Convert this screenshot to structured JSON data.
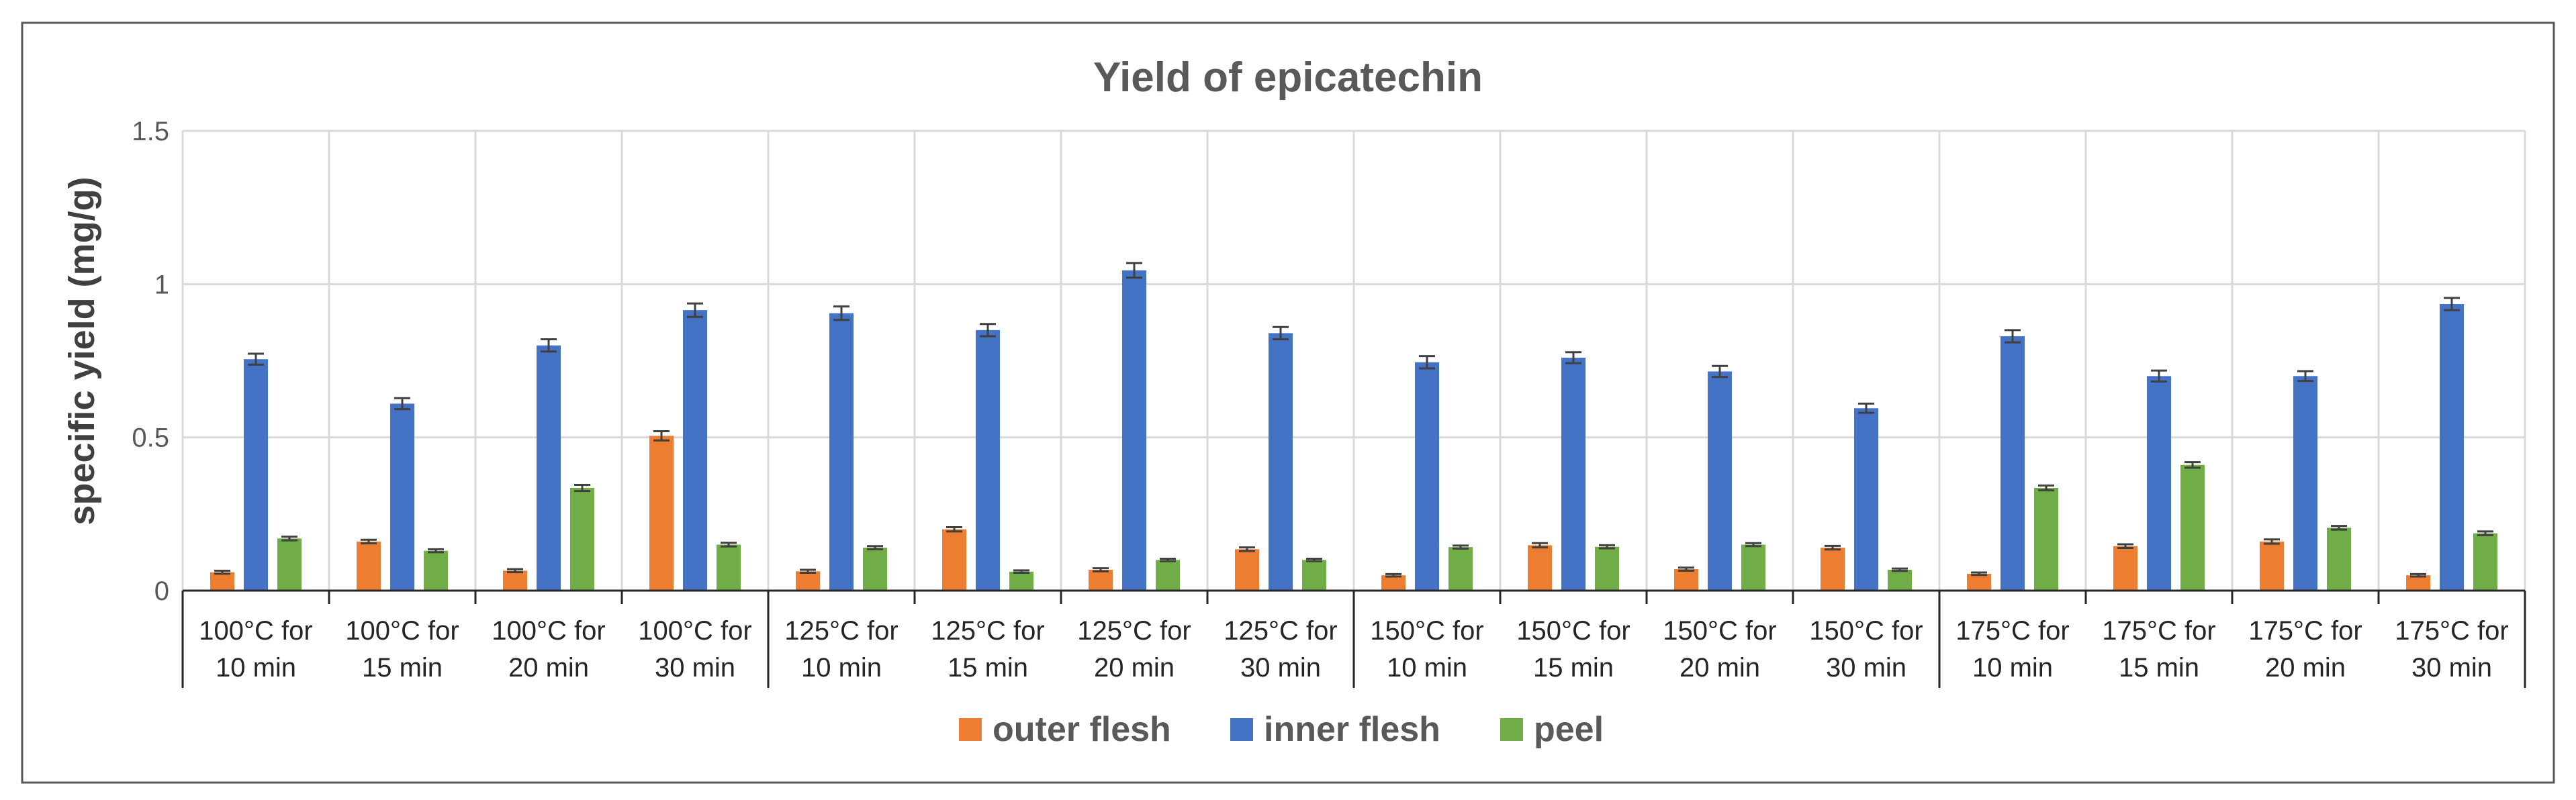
{
  "chart_data": {
    "type": "bar",
    "title": "Yield of epicatechin",
    "xlabel": "",
    "ylabel": "specific yield (mg/g)",
    "ylim": [
      0,
      1.5
    ],
    "yticks": [
      {
        "value": 0,
        "label": "0"
      },
      {
        "value": 0.5,
        "label": "0.5"
      },
      {
        "value": 1,
        "label": "1"
      },
      {
        "value": 1.5,
        "label": "1.5"
      }
    ],
    "grid": true,
    "legend_position": "bottom",
    "categories": [
      [
        "100°C for",
        "10 min"
      ],
      [
        "100°C for",
        "15 min"
      ],
      [
        "100°C for",
        "20 min"
      ],
      [
        "100°C for",
        "30 min"
      ],
      [
        "125°C for",
        "10 min"
      ],
      [
        "125°C for",
        "15 min"
      ],
      [
        "125°C for",
        "20 min"
      ],
      [
        "125°C for",
        "30 min"
      ],
      [
        "150°C for",
        "10 min"
      ],
      [
        "150°C for",
        "15 min"
      ],
      [
        "150°C for",
        "20 min"
      ],
      [
        "150°C for",
        "30 min"
      ],
      [
        "175°C for",
        "10 min"
      ],
      [
        "175°C for",
        "15 min"
      ],
      [
        "175°C for",
        "20 min"
      ],
      [
        "175°C for",
        "30 min"
      ]
    ],
    "category_groups": [
      {
        "label": "100°C",
        "size": 4
      },
      {
        "label": "125°C",
        "size": 4
      },
      {
        "label": "150°C",
        "size": 4
      },
      {
        "label": "175°C",
        "size": 4
      }
    ],
    "series": [
      {
        "name": "outer flesh",
        "color": "#ed7d31",
        "values": [
          0.06,
          0.16,
          0.065,
          0.505,
          0.063,
          0.2,
          0.068,
          0.135,
          0.05,
          0.148,
          0.07,
          0.14,
          0.055,
          0.145,
          0.16,
          0.05
        ],
        "errors": [
          0.005,
          0.006,
          0.005,
          0.015,
          0.005,
          0.007,
          0.005,
          0.006,
          0.004,
          0.007,
          0.005,
          0.006,
          0.004,
          0.006,
          0.007,
          0.004
        ]
      },
      {
        "name": "inner flesh",
        "color": "#4472c4",
        "values": [
          0.755,
          0.61,
          0.8,
          0.915,
          0.905,
          0.85,
          1.045,
          0.84,
          0.745,
          0.76,
          0.715,
          0.595,
          0.83,
          0.7,
          0.7,
          0.935
        ],
        "errors": [
          0.018,
          0.018,
          0.02,
          0.022,
          0.022,
          0.02,
          0.024,
          0.02,
          0.02,
          0.018,
          0.018,
          0.015,
          0.02,
          0.018,
          0.016,
          0.02
        ]
      },
      {
        "name": "peel",
        "color": "#70ad47",
        "values": [
          0.17,
          0.13,
          0.335,
          0.15,
          0.14,
          0.062,
          0.1,
          0.1,
          0.142,
          0.143,
          0.15,
          0.068,
          0.335,
          0.41,
          0.205,
          0.187
        ],
        "errors": [
          0.006,
          0.005,
          0.01,
          0.006,
          0.005,
          0.004,
          0.004,
          0.004,
          0.005,
          0.005,
          0.005,
          0.004,
          0.008,
          0.009,
          0.006,
          0.006
        ]
      }
    ]
  }
}
